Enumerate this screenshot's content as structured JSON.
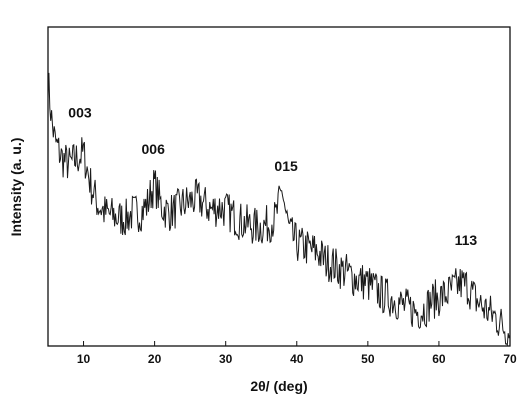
{
  "chart_data": {
    "type": "line",
    "title": "",
    "xlabel": "2θ/ (deg)",
    "ylabel": "Intensity (a. u.)",
    "xlim": [
      5,
      70
    ],
    "ylim": [
      0,
      100
    ],
    "y_ticks_labeled": false,
    "x_ticks": [
      10,
      20,
      30,
      40,
      50,
      60,
      70
    ],
    "grid": false,
    "legend": "none",
    "line_color": "#1a1a1a",
    "series": [
      {
        "name": "",
        "x": [
          5,
          5.5,
          6,
          7,
          8,
          9,
          10,
          11,
          12,
          13,
          14,
          15,
          16,
          17,
          18,
          19,
          19.5,
          20,
          20.5,
          21,
          22,
          23,
          24,
          25,
          26,
          27,
          28,
          29,
          30,
          31,
          32,
          33,
          34,
          35,
          36,
          37,
          37.5,
          38,
          38.5,
          39,
          40,
          41,
          42,
          43,
          44,
          45,
          46,
          47,
          48,
          49,
          50,
          51,
          52,
          53,
          54,
          55,
          56,
          57,
          58,
          59,
          60,
          61,
          62,
          63,
          64,
          65,
          66,
          67,
          68,
          69,
          70
        ],
        "y": [
          92,
          78,
          70,
          64,
          62,
          64,
          66,
          55,
          48,
          45,
          44,
          43,
          43,
          45,
          45,
          48,
          52,
          55,
          51,
          47,
          45,
          46,
          48,
          49,
          50,
          48,
          46,
          47,
          46,
          44,
          42,
          41,
          40,
          40,
          41,
          43,
          48,
          53,
          44,
          38,
          34,
          33,
          32,
          31,
          28,
          27,
          25,
          24,
          22,
          21,
          20,
          18,
          16,
          15,
          14,
          12,
          11,
          10,
          11,
          14,
          15,
          16,
          18,
          20,
          19,
          15,
          12,
          10,
          8,
          5,
          2
        ]
      }
    ]
  },
  "annotations": [
    {
      "text": "003",
      "x": 9.5,
      "y": 73
    },
    {
      "text": "006",
      "x": 19.8,
      "y": 60
    },
    {
      "text": "015",
      "x": 38.5,
      "y": 54
    },
    {
      "text": "113",
      "x": 63.8,
      "y": 28
    }
  ]
}
